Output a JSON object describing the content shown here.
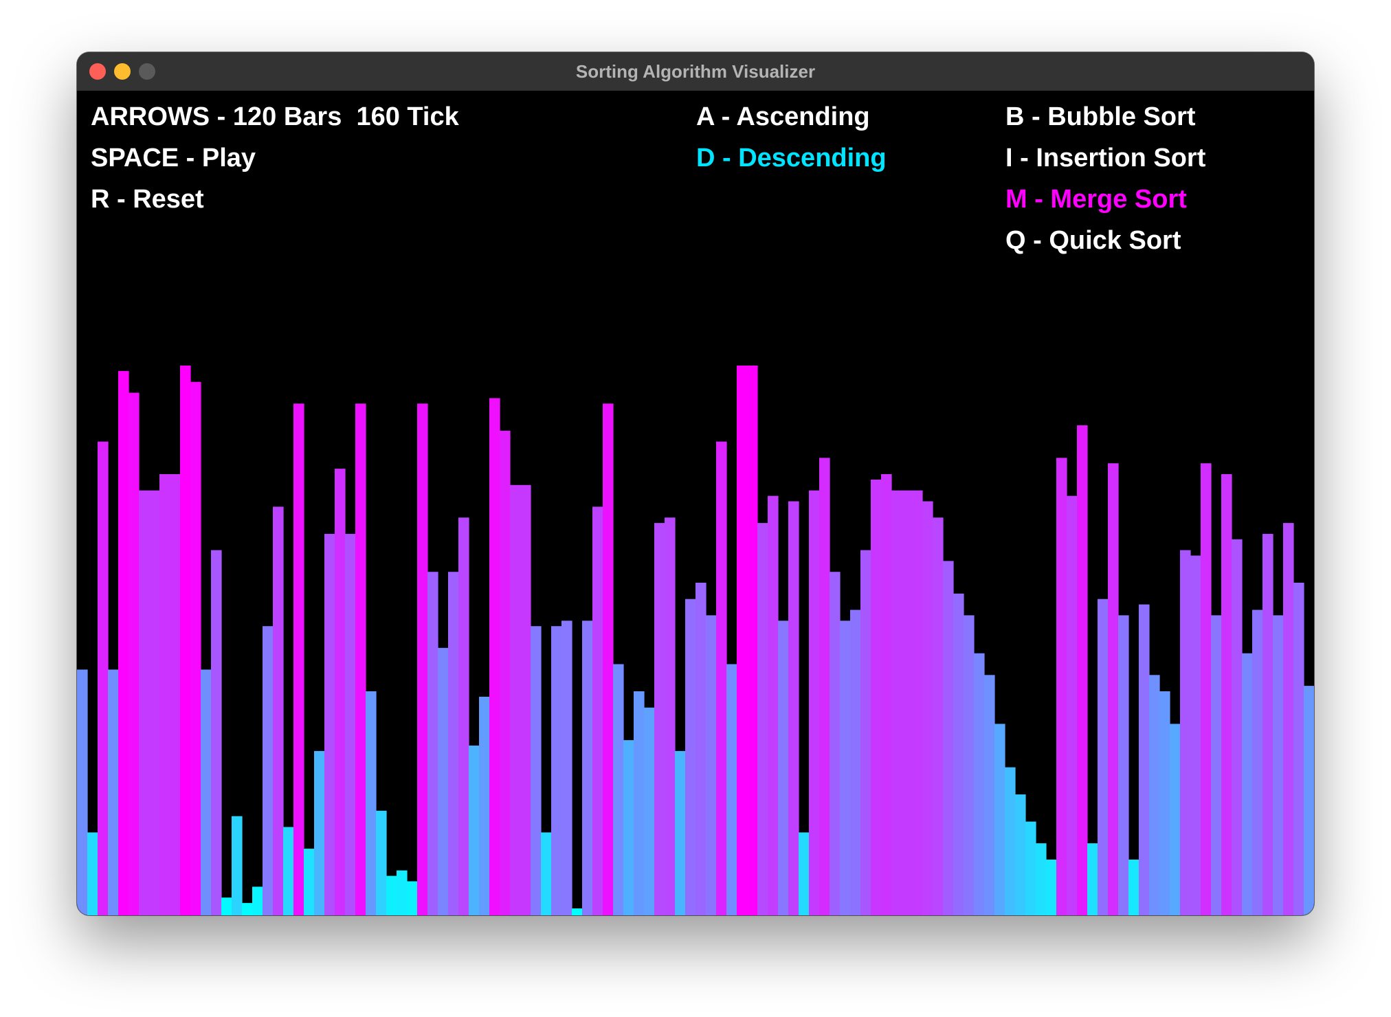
{
  "window": {
    "title": "Sorting Algorithm Visualizer"
  },
  "controls": {
    "arrows": "ARROWS - 120 Bars  160 Tick",
    "space": "SPACE - Play",
    "reset": "R - Reset"
  },
  "order": {
    "ascending": "A - Ascending",
    "descending": "D - Descending",
    "selected": "descending"
  },
  "algorithms": {
    "bubble": "B - Bubble Sort",
    "insertion": "I - Insertion Sort",
    "merge": "M - Merge Sort",
    "quick": "Q - Quick Sort",
    "selected": "merge"
  },
  "colors": {
    "text": "#ffffff",
    "highlight_order": "#00e5ff",
    "highlight_algorithm": "#ff00ff",
    "bar_low": "#00ffff",
    "bar_high": "#ff00ff"
  },
  "chart_data": {
    "type": "bar",
    "bar_count": 120,
    "tick": 160,
    "ylim": [
      0,
      100
    ],
    "values": [
      44,
      14,
      86,
      44,
      99,
      95,
      77,
      77,
      80,
      80,
      100,
      97,
      44,
      66,
      2,
      17,
      1,
      4,
      52,
      74,
      15,
      93,
      11,
      29,
      69,
      81,
      69,
      93,
      40,
      18,
      6,
      7,
      5,
      93,
      62,
      48,
      62,
      72,
      30,
      39,
      94,
      88,
      78,
      78,
      52,
      14,
      52,
      53,
      0,
      53,
      74,
      93,
      45,
      31,
      40,
      37,
      71,
      72,
      29,
      57,
      60,
      54,
      86,
      45,
      100,
      100,
      71,
      76,
      53,
      75,
      14,
      77,
      83,
      62,
      53,
      55,
      66,
      79,
      80,
      77,
      77,
      77,
      75,
      72,
      64,
      58,
      54,
      47,
      43,
      34,
      26,
      21,
      16,
      12,
      9,
      83,
      76,
      89,
      12,
      57,
      82,
      54,
      9,
      56,
      43,
      40,
      34,
      66,
      65,
      82,
      54,
      80,
      68,
      47,
      55,
      69,
      54,
      71,
      60,
      41
    ],
    "title": "",
    "xlabel": "",
    "ylabel": ""
  }
}
